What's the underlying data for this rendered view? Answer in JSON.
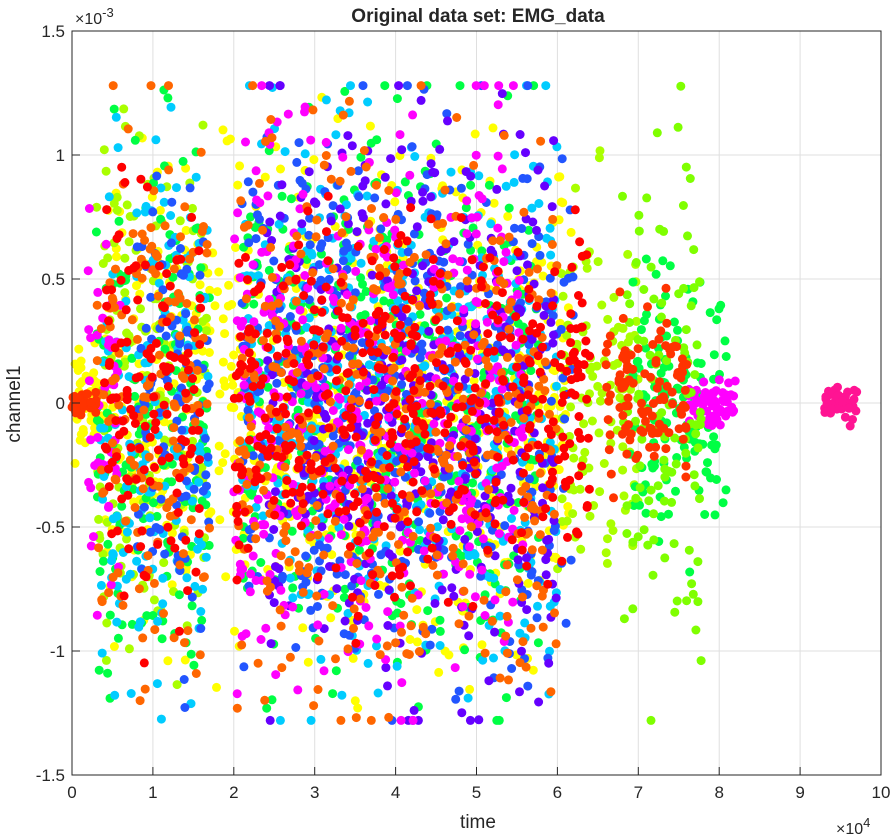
{
  "chart_data": {
    "type": "scatter",
    "title": "Original data set: EMG_data",
    "xlabel": "time",
    "ylabel": "channel1",
    "xlim": [
      0,
      100000
    ],
    "ylim": [
      -0.0015,
      0.0015
    ],
    "x_ticks": [
      0,
      10000,
      20000,
      30000,
      40000,
      50000,
      60000,
      70000,
      80000,
      90000,
      100000
    ],
    "x_tick_labels": [
      "0",
      "1",
      "2",
      "3",
      "4",
      "5",
      "6",
      "7",
      "8",
      "9",
      "10"
    ],
    "x_exponent_base": "×10",
    "x_exponent_power": "4",
    "y_ticks": [
      -0.0015,
      -0.001,
      -0.0005,
      0,
      0.0005,
      0.001,
      0.0015
    ],
    "y_tick_labels": [
      "-1.5",
      "-1",
      "-0.5",
      "0",
      "0.5",
      "1",
      "1.5"
    ],
    "y_exponent_base": "×10",
    "y_exponent_power": "-3",
    "grid": true,
    "clip_value": 0.00128,
    "series": [
      {
        "color": "#ffff00",
        "segments": [
          {
            "x": [
              0,
              4000
            ],
            "amp": 0.00025
          },
          {
            "x": [
              4000,
              62000
            ],
            "amp": 0.0011
          }
        ]
      },
      {
        "color": "#aaff00",
        "segments": [
          {
            "x": [
              3000,
              17000
            ],
            "amp": 0.00128
          },
          {
            "x": [
              60000,
              70000
            ],
            "amp": 0.0009
          }
        ]
      },
      {
        "color": "#00ff44",
        "segments": [
          {
            "x": [
              3000,
              17000
            ],
            "amp": 0.00128
          },
          {
            "x": [
              21000,
              58000
            ],
            "amp": 0.00128
          },
          {
            "x": [
              69000,
              81000
            ],
            "amp": 0.0006
          }
        ]
      },
      {
        "color": "#00ccff",
        "segments": [
          {
            "x": [
              3500,
              17000
            ],
            "amp": 0.00128
          },
          {
            "x": [
              21000,
              60000
            ],
            "amp": 0.00128
          }
        ]
      },
      {
        "color": "#2255ff",
        "segments": [
          {
            "x": [
              8000,
              17000
            ],
            "amp": 0.0011
          },
          {
            "x": [
              21000,
              62000
            ],
            "amp": 0.00128
          }
        ]
      },
      {
        "color": "#6600ff",
        "segments": [
          {
            "x": [
              24000,
              60000
            ],
            "amp": 0.00128
          }
        ]
      },
      {
        "color": "#ff00ff",
        "segments": [
          {
            "x": [
              2000,
              6000
            ],
            "amp": 0.0009
          },
          {
            "x": [
              20000,
              56000
            ],
            "amp": 0.00128
          },
          {
            "x": [
              76000,
              82000
            ],
            "amp": 0.00012
          }
        ]
      },
      {
        "color": "#ff1493",
        "segments": [
          {
            "x": [
              93000,
              97000
            ],
            "amp": 0.0001
          }
        ]
      },
      {
        "color": "#ff6600",
        "segments": [
          {
            "x": [
              3000,
              17000
            ],
            "amp": 0.00128
          },
          {
            "x": [
              20000,
              60000
            ],
            "amp": 0.00128
          }
        ]
      },
      {
        "color": "#7fff00",
        "segments": [
          {
            "x": [
              68000,
              78000
            ],
            "amp": 0.00128
          }
        ]
      },
      {
        "color": "#ff3300",
        "segments": [
          {
            "x": [
              66000,
              76000
            ],
            "amp": 0.0004
          },
          {
            "x": [
              0,
              3000
            ],
            "amp": 5e-05
          }
        ]
      },
      {
        "color": "#ff0000",
        "segments": [
          {
            "x": [
              4000,
              16000
            ],
            "amp": 0.0009
          },
          {
            "x": [
              20000,
              64000
            ],
            "amp": 0.0008
          }
        ]
      }
    ]
  }
}
